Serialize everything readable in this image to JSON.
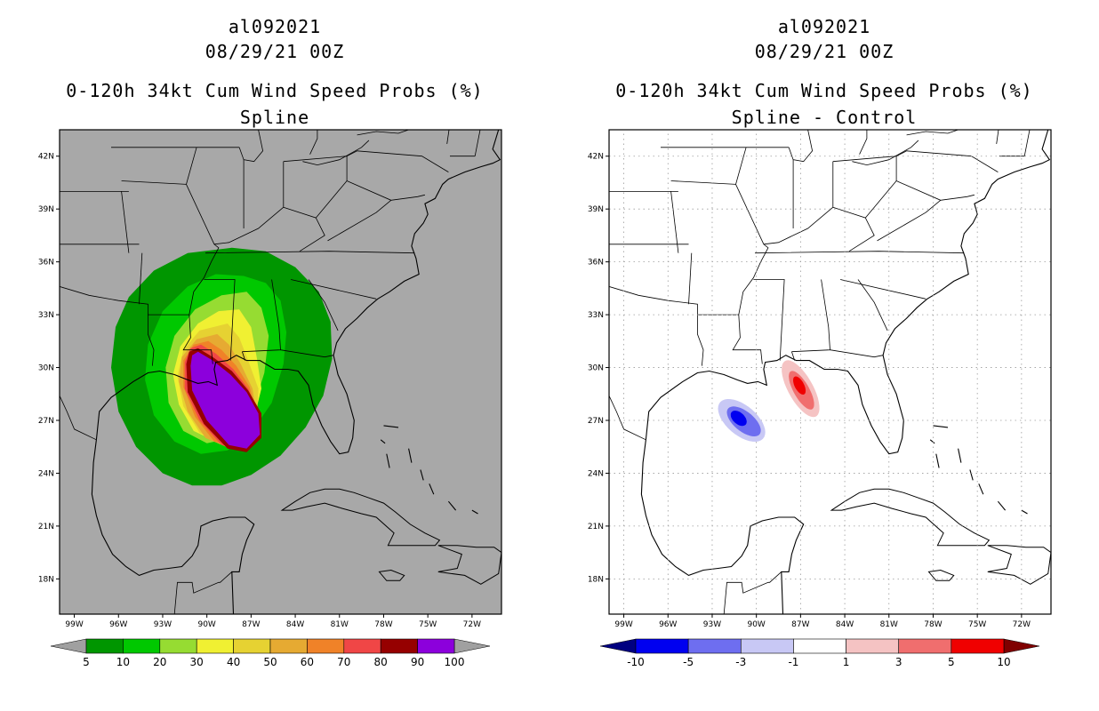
{
  "chart_data": [
    {
      "type": "heatmap",
      "panel": "left",
      "title_lines": [
        "al092021",
        "08/29/21 00Z",
        "0-120h 34kt Cum Wind Speed Probs (%)",
        "Spline"
      ],
      "lon_range": [
        -100,
        -70
      ],
      "lat_range": [
        16,
        43.5
      ],
      "x_ticks": [
        "99W",
        "96W",
        "93W",
        "90W",
        "87W",
        "84W",
        "81W",
        "78W",
        "75W",
        "72W"
      ],
      "y_ticks": [
        "18N",
        "21N",
        "24N",
        "27N",
        "30N",
        "33N",
        "36N",
        "39N",
        "42N"
      ],
      "colorbar": {
        "levels": [
          "5",
          "10",
          "20",
          "30",
          "40",
          "50",
          "60",
          "70",
          "80",
          "90",
          "100"
        ],
        "colors": [
          "#009600",
          "#00c800",
          "#96dc32",
          "#f0f032",
          "#e6d232",
          "#e6aa32",
          "#f08228",
          "#f04646",
          "#960000",
          "#8c00dc"
        ],
        "end_arrow_colors": [
          "#a0a0a0",
          "#a0a0a0"
        ]
      },
      "land_color": "#a8a8a8",
      "contour_levels_percent": [
        5,
        10,
        20,
        30,
        40,
        50,
        60,
        70,
        80,
        90
      ],
      "max_center": {
        "lon": -88.5,
        "lat": 28.2
      }
    },
    {
      "type": "heatmap",
      "panel": "right",
      "title_lines": [
        "al092021",
        "08/29/21 00Z",
        "0-120h 34kt Cum Wind Speed Probs (%)",
        "Spline - Control"
      ],
      "lon_range": [
        -100,
        -70
      ],
      "lat_range": [
        16,
        43.5
      ],
      "x_ticks": [
        "99W",
        "96W",
        "93W",
        "90W",
        "87W",
        "84W",
        "81W",
        "78W",
        "75W",
        "72W"
      ],
      "y_ticks": [
        "18N",
        "21N",
        "24N",
        "27N",
        "30N",
        "33N",
        "36N",
        "39N",
        "42N"
      ],
      "colorbar": {
        "levels": [
          "-10",
          "-5",
          "-3",
          "-1",
          "1",
          "3",
          "5",
          "10"
        ],
        "colors": [
          "#0000f0",
          "#6e6ef0",
          "#c8c8f5",
          "#ffffff",
          "#f5c3c3",
          "#f06e6e",
          "#f00000"
        ],
        "end_arrow_colors": [
          "#000080",
          "#800000"
        ]
      },
      "anomalies": [
        {
          "sign": "negative",
          "center_lon": -91.0,
          "center_lat": 27.0,
          "min_value": -5
        },
        {
          "sign": "positive",
          "center_lon": -87.0,
          "center_lat": 28.8,
          "max_value": 5
        }
      ]
    }
  ]
}
